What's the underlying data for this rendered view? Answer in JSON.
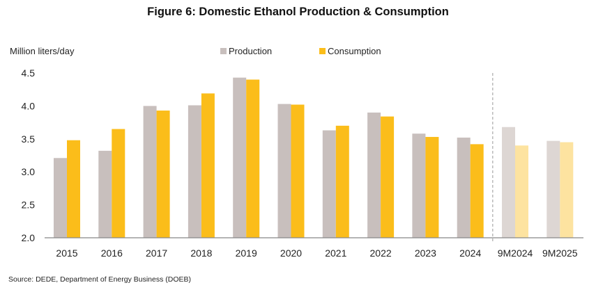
{
  "chart_data": {
    "type": "bar",
    "title": "Figure 6: Domestic Ethanol Production & Consumption",
    "ylabel": "Million liters/day",
    "xlabel": "",
    "ylim": [
      2.0,
      4.5
    ],
    "yticks": [
      "2.0",
      "2.5",
      "3.0",
      "3.5",
      "4.0",
      "4.5"
    ],
    "grid": false,
    "legend_position": "top",
    "categories": [
      "2015",
      "2016",
      "2017",
      "2018",
      "2019",
      "2020",
      "2021",
      "2022",
      "2023",
      "2024",
      "9M2024",
      "9M2025"
    ],
    "series": [
      {
        "name": "Production",
        "color": "#c8bfbd",
        "light_color": "#ddd6d3",
        "values": [
          3.21,
          3.32,
          4.0,
          4.01,
          4.43,
          4.03,
          3.63,
          3.9,
          3.58,
          3.52,
          3.68,
          3.47
        ]
      },
      {
        "name": "Consumption",
        "color": "#fbbd1a",
        "light_color": "#fde3a0",
        "values": [
          3.48,
          3.65,
          3.93,
          4.19,
          4.4,
          4.02,
          3.7,
          3.84,
          3.53,
          3.42,
          3.4,
          3.45
        ]
      }
    ],
    "light_categories": [
      "9M2024",
      "9M2025"
    ],
    "divider_before": "9M2024",
    "source": "Source: DEDE, Department of Energy Business (DOEB)"
  }
}
